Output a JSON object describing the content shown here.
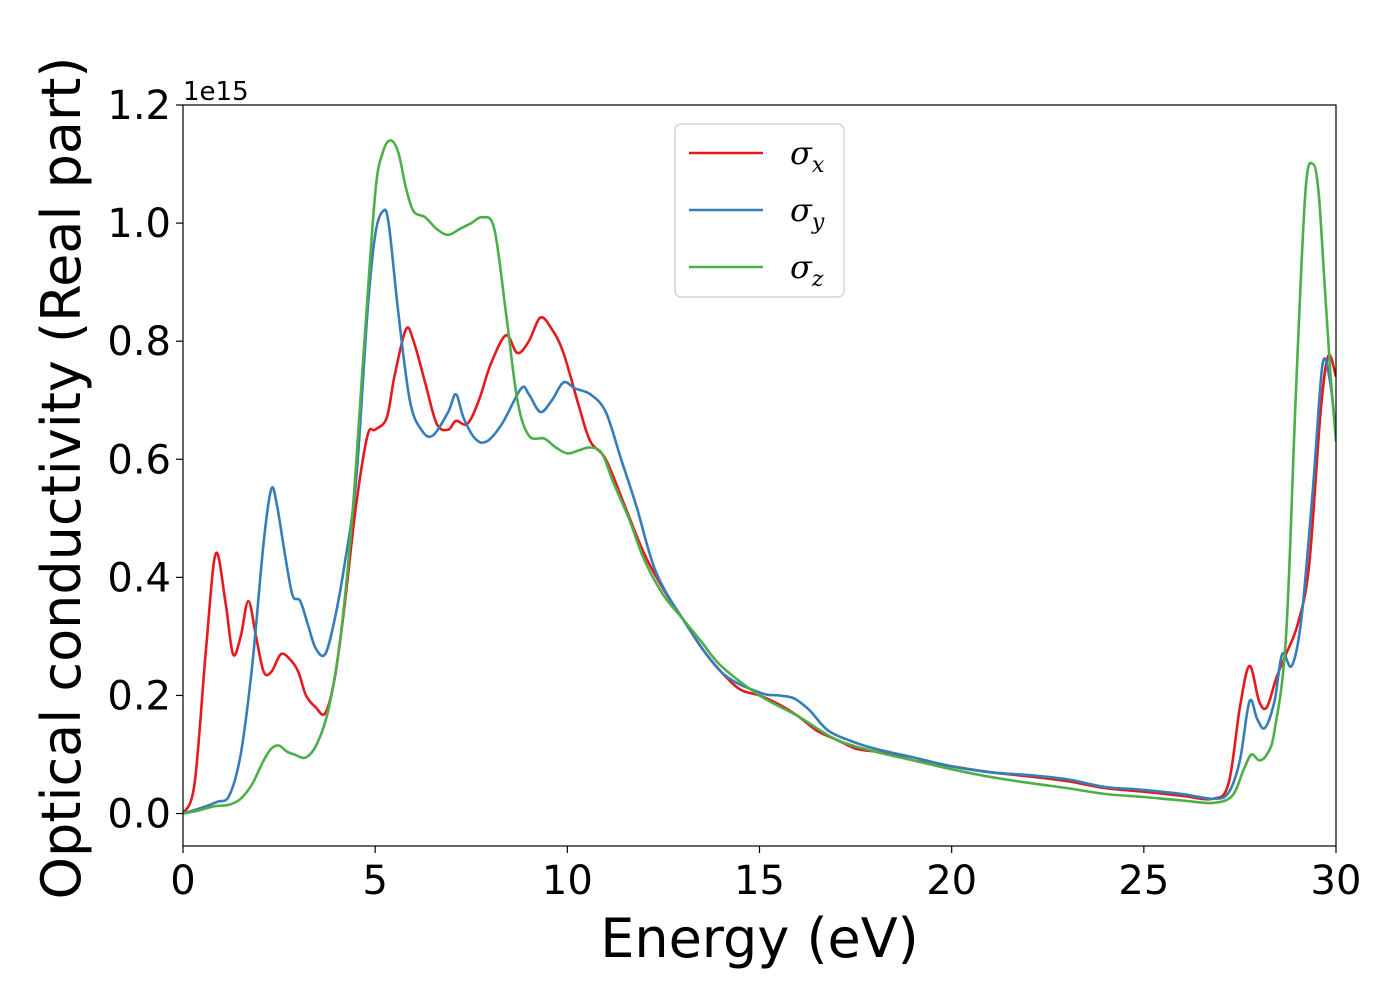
{
  "chart_data": {
    "type": "line",
    "title": "",
    "xlabel": "Energy (eV)",
    "ylabel": "Optical conductivity (Real part)",
    "y_offset_label": "1e15",
    "xlim": [
      0,
      30
    ],
    "ylim": [
      -0.055,
      1.2
    ],
    "xticks": [
      0,
      5,
      10,
      15,
      20,
      25,
      30
    ],
    "xtick_labels": [
      "0",
      "5",
      "10",
      "15",
      "20",
      "25",
      "30"
    ],
    "yticks": [
      0.0,
      0.2,
      0.4,
      0.6,
      0.8,
      1.0,
      1.2
    ],
    "ytick_labels": [
      "0.0",
      "0.2",
      "0.4",
      "0.6",
      "0.8",
      "1.0",
      "1.2"
    ],
    "grid": false,
    "legend_position": "top-center",
    "series": [
      {
        "name": "σ",
        "subscript": "x",
        "color": "#e41a1c",
        "x": [
          0,
          0.3,
          0.6,
          0.85,
          1.1,
          1.3,
          1.5,
          1.7,
          1.9,
          2.1,
          2.3,
          2.55,
          2.8,
          3.0,
          3.2,
          3.45,
          3.7,
          3.95,
          4.2,
          4.5,
          4.8,
          5.0,
          5.3,
          5.5,
          5.8,
          6.0,
          6.3,
          6.6,
          6.9,
          7.1,
          7.4,
          7.7,
          8.0,
          8.4,
          8.7,
          9.0,
          9.3,
          9.6,
          9.9,
          10.3,
          10.6,
          11.0,
          11.5,
          12.0,
          12.5,
          13.0,
          13.5,
          14.0,
          14.5,
          15.0,
          15.5,
          16.0,
          16.5,
          17.0,
          17.5,
          18.0,
          18.5,
          19.0,
          20.0,
          21.0,
          22.0,
          23.0,
          24.0,
          25.0,
          26.0,
          26.8,
          27.2,
          27.5,
          27.75,
          28.0,
          28.2,
          28.45,
          28.7,
          29.0,
          29.3,
          29.6,
          29.8,
          30.0
        ],
        "y": [
          0.0,
          0.05,
          0.28,
          0.44,
          0.36,
          0.27,
          0.3,
          0.36,
          0.3,
          0.24,
          0.24,
          0.27,
          0.26,
          0.24,
          0.2,
          0.18,
          0.17,
          0.23,
          0.35,
          0.52,
          0.64,
          0.65,
          0.67,
          0.74,
          0.82,
          0.8,
          0.73,
          0.66,
          0.65,
          0.665,
          0.66,
          0.7,
          0.76,
          0.81,
          0.78,
          0.8,
          0.84,
          0.82,
          0.78,
          0.69,
          0.63,
          0.6,
          0.52,
          0.44,
          0.38,
          0.33,
          0.28,
          0.24,
          0.21,
          0.2,
          0.185,
          0.165,
          0.14,
          0.125,
          0.11,
          0.105,
          0.1,
          0.09,
          0.08,
          0.07,
          0.063,
          0.055,
          0.043,
          0.037,
          0.03,
          0.025,
          0.05,
          0.18,
          0.25,
          0.19,
          0.18,
          0.23,
          0.27,
          0.32,
          0.42,
          0.68,
          0.775,
          0.74
        ]
      },
      {
        "name": "σ",
        "subscript": "y",
        "color": "#377eb8",
        "x": [
          0,
          0.5,
          0.9,
          1.2,
          1.5,
          1.8,
          2.1,
          2.3,
          2.45,
          2.65,
          2.85,
          3.05,
          3.25,
          3.45,
          3.7,
          3.95,
          4.2,
          4.5,
          4.8,
          5.0,
          5.2,
          5.35,
          5.6,
          5.9,
          6.2,
          6.5,
          6.9,
          7.1,
          7.3,
          7.6,
          7.9,
          8.3,
          8.8,
          9.0,
          9.3,
          9.6,
          9.9,
          10.2,
          10.6,
          11.0,
          11.4,
          11.8,
          12.3,
          13.0,
          14.0,
          15.0,
          15.5,
          15.9,
          16.3,
          16.8,
          17.5,
          18.0,
          19.0,
          20.0,
          21.0,
          22.0,
          23.0,
          24.0,
          25.0,
          26.0,
          26.8,
          27.2,
          27.5,
          27.75,
          27.95,
          28.15,
          28.4,
          28.6,
          28.85,
          29.1,
          29.4,
          29.65,
          29.85,
          30.0
        ],
        "y": [
          0.0,
          0.01,
          0.02,
          0.03,
          0.1,
          0.25,
          0.46,
          0.55,
          0.52,
          0.44,
          0.37,
          0.36,
          0.32,
          0.28,
          0.27,
          0.33,
          0.42,
          0.56,
          0.85,
          0.98,
          1.02,
          1.0,
          0.85,
          0.7,
          0.65,
          0.64,
          0.68,
          0.71,
          0.67,
          0.635,
          0.63,
          0.66,
          0.72,
          0.71,
          0.68,
          0.7,
          0.73,
          0.72,
          0.71,
          0.68,
          0.6,
          0.52,
          0.41,
          0.33,
          0.24,
          0.205,
          0.2,
          0.195,
          0.175,
          0.14,
          0.12,
          0.11,
          0.095,
          0.08,
          0.07,
          0.065,
          0.058,
          0.045,
          0.04,
          0.033,
          0.025,
          0.035,
          0.09,
          0.19,
          0.16,
          0.145,
          0.19,
          0.27,
          0.25,
          0.33,
          0.55,
          0.76,
          0.73,
          0.64
        ]
      },
      {
        "name": "σ",
        "subscript": "z",
        "color": "#4daf4a",
        "x": [
          0,
          0.4,
          0.8,
          1.2,
          1.5,
          1.8,
          2.1,
          2.3,
          2.5,
          2.7,
          2.9,
          3.2,
          3.5,
          3.8,
          4.1,
          4.4,
          4.7,
          5.0,
          5.2,
          5.4,
          5.6,
          5.8,
          6.0,
          6.3,
          6.6,
          6.9,
          7.2,
          7.5,
          7.8,
          8.1,
          8.4,
          8.7,
          9.0,
          9.4,
          9.7,
          10.0,
          10.3,
          10.6,
          10.9,
          11.2,
          11.6,
          12.0,
          12.5,
          13.0,
          13.5,
          14.0,
          15.0,
          16.0,
          17.0,
          18.0,
          19.0,
          20.0,
          21.0,
          22.0,
          23.0,
          24.0,
          25.0,
          26.0,
          26.8,
          27.3,
          27.6,
          27.8,
          28.0,
          28.2,
          28.4,
          28.7,
          28.95,
          29.2,
          29.4,
          29.55,
          29.7,
          29.85,
          30.0
        ],
        "y": [
          0.0,
          0.005,
          0.012,
          0.015,
          0.025,
          0.05,
          0.09,
          0.11,
          0.115,
          0.105,
          0.1,
          0.095,
          0.12,
          0.18,
          0.3,
          0.5,
          0.78,
          1.05,
          1.12,
          1.14,
          1.12,
          1.06,
          1.02,
          1.01,
          0.99,
          0.98,
          0.99,
          1.0,
          1.01,
          0.99,
          0.85,
          0.7,
          0.64,
          0.635,
          0.62,
          0.61,
          0.615,
          0.62,
          0.61,
          0.56,
          0.5,
          0.43,
          0.37,
          0.33,
          0.29,
          0.25,
          0.2,
          0.165,
          0.125,
          0.105,
          0.09,
          0.075,
          0.062,
          0.052,
          0.043,
          0.033,
          0.028,
          0.022,
          0.018,
          0.03,
          0.075,
          0.1,
          0.09,
          0.1,
          0.14,
          0.3,
          0.7,
          1.05,
          1.1,
          1.05,
          0.9,
          0.75,
          0.63
        ]
      }
    ]
  }
}
